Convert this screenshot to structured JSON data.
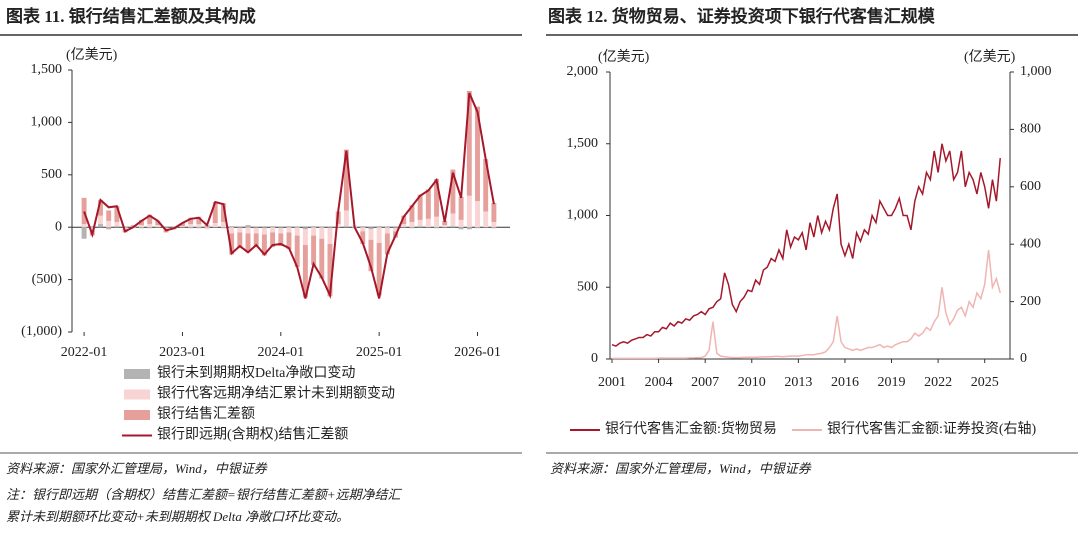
{
  "chart_data": [
    {
      "type": "bar",
      "title": "图表 11. 银行结售汇差额及其构成",
      "y_label": "(亿美元)",
      "categories": [
        "2022-01",
        null,
        null,
        null,
        null,
        null,
        null,
        null,
        null,
        null,
        null,
        null,
        "2023-01",
        null,
        null,
        null,
        null,
        null,
        null,
        null,
        null,
        null,
        null,
        null,
        "2024-01",
        null,
        null,
        null,
        null,
        null,
        null,
        null,
        null,
        null,
        null,
        null,
        "2025-01",
        null,
        null,
        null,
        null,
        null,
        null,
        null,
        null,
        null,
        null,
        null,
        "2026-01",
        null,
        null
      ],
      "ylim": [
        -1000,
        1500
      ],
      "yticks": [
        {
          "value": -1000,
          "label": "(1,000)"
        },
        {
          "value": -500,
          "label": "(500)"
        },
        0,
        500,
        {
          "value": 1000,
          "label": "1,000"
        },
        {
          "value": 1500,
          "label": "1,500"
        }
      ],
      "negative_tick_color": "#e0302a",
      "series": [
        {
          "name": "银行未到期期权Delta净敞口变动",
          "type": "bar",
          "color": "#b3b3b3",
          "values": [
            -110,
            10,
            30,
            -20,
            10,
            0,
            10,
            -10,
            -10,
            0,
            -10,
            0,
            0,
            -10,
            -10,
            10,
            0,
            -10,
            10,
            -10,
            20,
            -10,
            -10,
            10,
            -10,
            10,
            0,
            -20,
            10,
            0,
            -10,
            0,
            10,
            -10,
            10,
            -20,
            10,
            0,
            -10,
            0,
            -10,
            10,
            0,
            -10,
            0,
            10,
            -20,
            -20,
            -10,
            0,
            -10
          ]
        },
        {
          "name": "银行代客远期净结汇累计未到期额变动",
          "type": "bar",
          "color": "#f8d5d4",
          "values": [
            30,
            -20,
            80,
            60,
            40,
            -20,
            -10,
            20,
            30,
            20,
            -20,
            -10,
            10,
            30,
            30,
            -20,
            40,
            50,
            -60,
            -40,
            -60,
            -50,
            -60,
            -50,
            -50,
            -50,
            -80,
            -150,
            -80,
            -110,
            -150,
            30,
            150,
            20,
            -40,
            -100,
            -150,
            -60,
            -30,
            30,
            50,
            60,
            80,
            100,
            20,
            120,
            70,
            300,
            250,
            150,
            50
          ]
        },
        {
          "name": "银行结售汇差额",
          "type": "bar",
          "color": "#e6a09b",
          "values": [
            250,
            -60,
            150,
            100,
            150,
            -30,
            10,
            50,
            90,
            40,
            -20,
            -10,
            30,
            60,
            70,
            10,
            200,
            180,
            -200,
            -150,
            -180,
            -130,
            -200,
            -140,
            -120,
            -160,
            -300,
            -500,
            -280,
            -380,
            -500,
            120,
            580,
            0,
            -120,
            -300,
            -500,
            -200,
            -60,
            80,
            160,
            240,
            280,
            360,
            40,
            420,
            220,
            1000,
            900,
            500,
            180
          ]
        },
        {
          "name": "银行即远期(含期权)结售汇差额",
          "type": "line",
          "color": "#a5182b",
          "values": [
            150,
            -70,
            260,
            190,
            200,
            -40,
            0,
            60,
            110,
            60,
            -30,
            -10,
            40,
            80,
            90,
            20,
            240,
            220,
            -250,
            -180,
            -240,
            -170,
            -260,
            -170,
            -160,
            -200,
            -380,
            -680,
            -350,
            -480,
            -650,
            150,
            730,
            0,
            -150,
            -380,
            -680,
            -250,
            -80,
            100,
            200,
            300,
            350,
            450,
            50,
            520,
            280,
            1280,
            1100,
            650,
            220
          ]
        }
      ],
      "source": "资料来源：国家外汇管理局，Wind，中银证券",
      "note": [
        "注：银行即远期（含期权）结售汇差额=银行结售汇差额+远期净结汇",
        "累计未到期额环比变动+未到期期权 Delta 净敞口环比变动。"
      ]
    },
    {
      "type": "line",
      "title": "图表 12. 货物贸易、证券投资项下银行代客售汇规模",
      "y_label": "(亿美元)",
      "y2_label": "(亿美元)",
      "x": [
        2001,
        2001.25,
        2001.5,
        2001.75,
        2002,
        2002.25,
        2002.5,
        2002.75,
        2003,
        2003.25,
        2003.5,
        2003.75,
        2004,
        2004.25,
        2004.5,
        2004.75,
        2005,
        2005.25,
        2005.5,
        2005.75,
        2006,
        2006.25,
        2006.5,
        2006.75,
        2007,
        2007.25,
        2007.5,
        2007.75,
        2008,
        2008.25,
        2008.5,
        2008.75,
        2009,
        2009.25,
        2009.5,
        2009.75,
        2010,
        2010.25,
        2010.5,
        2010.75,
        2011,
        2011.25,
        2011.5,
        2011.75,
        2012,
        2012.25,
        2012.5,
        2012.75,
        2013,
        2013.25,
        2013.5,
        2013.75,
        2014,
        2014.25,
        2014.5,
        2014.75,
        2015,
        2015.25,
        2015.5,
        2015.75,
        2016,
        2016.25,
        2016.5,
        2016.75,
        2017,
        2017.25,
        2017.5,
        2017.75,
        2018,
        2018.25,
        2018.5,
        2018.75,
        2019,
        2019.25,
        2019.5,
        2019.75,
        2020,
        2020.25,
        2020.5,
        2020.75,
        2021,
        2021.25,
        2021.5,
        2021.75,
        2022,
        2022.25,
        2022.5,
        2022.75,
        2023,
        2023.25,
        2023.5,
        2023.75,
        2024,
        2024.25,
        2024.5,
        2024.75,
        2025,
        2025.25,
        2025.5,
        2025.75,
        2026
      ],
      "xlim": [
        2001,
        2026.5
      ],
      "xticks": [
        2001,
        2004,
        2007,
        2010,
        2013,
        2016,
        2019,
        2022,
        2025
      ],
      "ylim": [
        0,
        2000
      ],
      "yticks": [
        0,
        500,
        {
          "value": 1000,
          "label": "1,000"
        },
        {
          "value": 1500,
          "label": "1,500"
        },
        {
          "value": 2000,
          "label": "2,000"
        }
      ],
      "y2lim": [
        0,
        1000
      ],
      "y2ticks": [
        0,
        200,
        400,
        600,
        800,
        {
          "value": 1000,
          "label": "1,000"
        }
      ],
      "series": [
        {
          "name": "银行代客售汇金额:货物贸易",
          "color": "#a5182b",
          "values": [
            100,
            90,
            110,
            120,
            110,
            130,
            140,
            150,
            150,
            170,
            160,
            190,
            190,
            220,
            210,
            250,
            230,
            260,
            250,
            280,
            270,
            300,
            310,
            330,
            310,
            350,
            360,
            400,
            420,
            600,
            520,
            380,
            330,
            400,
            430,
            480,
            470,
            550,
            520,
            620,
            640,
            700,
            680,
            760,
            700,
            900,
            780,
            850,
            830,
            880,
            760,
            950,
            850,
            1000,
            880,
            960,
            900,
            1050,
            1150,
            800,
            720,
            800,
            700,
            880,
            820,
            900,
            870,
            1000,
            950,
            1100,
            1050,
            1000,
            1000,
            1050,
            1120,
            1000,
            1000,
            900,
            1100,
            1200,
            1150,
            1300,
            1250,
            1450,
            1300,
            1500,
            1380,
            1450,
            1250,
            1300,
            1450,
            1200,
            1300,
            1250,
            1150,
            1300,
            1200,
            1050,
            1250,
            1100,
            1400
          ]
        },
        {
          "name": "银行代客售汇金额:证券投资(右轴)",
          "color": "#efb5b3",
          "axis": "y2",
          "values": [
            2,
            2,
            2,
            2,
            2,
            2,
            2,
            2,
            2,
            2,
            2,
            2,
            3,
            3,
            3,
            3,
            3,
            3,
            3,
            3,
            4,
            4,
            5,
            5,
            10,
            30,
            130,
            20,
            10,
            8,
            6,
            5,
            5,
            5,
            6,
            6,
            6,
            6,
            7,
            7,
            8,
            8,
            9,
            9,
            8,
            9,
            10,
            10,
            10,
            12,
            15,
            15,
            15,
            18,
            20,
            25,
            40,
            60,
            150,
            60,
            40,
            35,
            30,
            35,
            30,
            35,
            40,
            40,
            45,
            50,
            40,
            45,
            40,
            50,
            55,
            60,
            60,
            70,
            90,
            80,
            90,
            110,
            100,
            130,
            150,
            250,
            160,
            120,
            140,
            170,
            180,
            150,
            200,
            180,
            230,
            210,
            260,
            380,
            250,
            280,
            230
          ]
        }
      ],
      "source": "资料来源：国家外汇管理局，Wind，中银证券"
    }
  ]
}
